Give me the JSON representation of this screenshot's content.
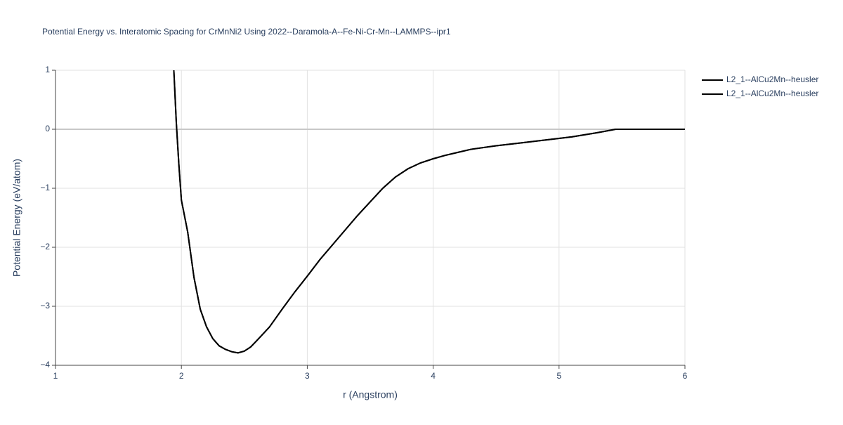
{
  "chart_data": {
    "type": "line",
    "title": "Potential Energy vs. Interatomic Spacing for CrMnNi2 Using 2022--Daramola-A--Fe-Ni-Cr-Mn--LAMMPS--ipr1",
    "x_label": "r (Angstrom)",
    "y_label": "Potential Energy (eV/atom)",
    "x": [
      1.94,
      1.96,
      1.98,
      2.0,
      2.05,
      2.1,
      2.15,
      2.2,
      2.25,
      2.3,
      2.35,
      2.4,
      2.45,
      2.5,
      2.55,
      2.6,
      2.7,
      2.8,
      2.9,
      3.0,
      3.1,
      3.2,
      3.3,
      3.4,
      3.5,
      3.6,
      3.7,
      3.8,
      3.9,
      4.0,
      4.1,
      4.2,
      4.3,
      4.5,
      4.7,
      4.9,
      5.1,
      5.3,
      5.45,
      5.6,
      6.0
    ],
    "series": [
      {
        "name": "L2_1--AlCu2Mn--heusler",
        "color": "#000000",
        "values": [
          1.0,
          0.1,
          -0.6,
          -1.2,
          -1.74,
          -2.51,
          -3.05,
          -3.35,
          -3.55,
          -3.67,
          -3.73,
          -3.77,
          -3.79,
          -3.76,
          -3.69,
          -3.58,
          -3.35,
          -3.05,
          -2.76,
          -2.49,
          -2.21,
          -1.96,
          -1.71,
          -1.46,
          -1.23,
          -1.0,
          -0.81,
          -0.67,
          -0.57,
          -0.5,
          -0.44,
          -0.39,
          -0.34,
          -0.28,
          -0.23,
          -0.18,
          -0.13,
          -0.06,
          0,
          0,
          0
        ]
      },
      {
        "name": "L2_1--AlCu2Mn--heusler",
        "color": "#000000",
        "values": [
          1.0,
          0.1,
          -0.6,
          -1.2,
          -1.74,
          -2.51,
          -3.05,
          -3.35,
          -3.55,
          -3.67,
          -3.73,
          -3.77,
          -3.79,
          -3.76,
          -3.69,
          -3.58,
          -3.35,
          -3.05,
          -2.76,
          -2.49,
          -2.21,
          -1.96,
          -1.71,
          -1.46,
          -1.23,
          -1.0,
          -0.81,
          -0.67,
          -0.57,
          -0.5,
          -0.44,
          -0.39,
          -0.34,
          -0.28,
          -0.23,
          -0.18,
          -0.13,
          -0.06,
          0,
          0,
          0
        ]
      }
    ],
    "xlim": [
      1,
      6
    ],
    "xticks": [
      1,
      2,
      3,
      4,
      5,
      6
    ],
    "ylim": [
      -4,
      1
    ],
    "yticks": [
      {
        "value": -4,
        "label": "−4"
      },
      {
        "value": -3,
        "label": "−3"
      },
      {
        "value": -2,
        "label": "−2"
      },
      {
        "value": -1,
        "label": "−1"
      },
      0,
      1
    ],
    "grid": true,
    "legend": "top-right"
  }
}
